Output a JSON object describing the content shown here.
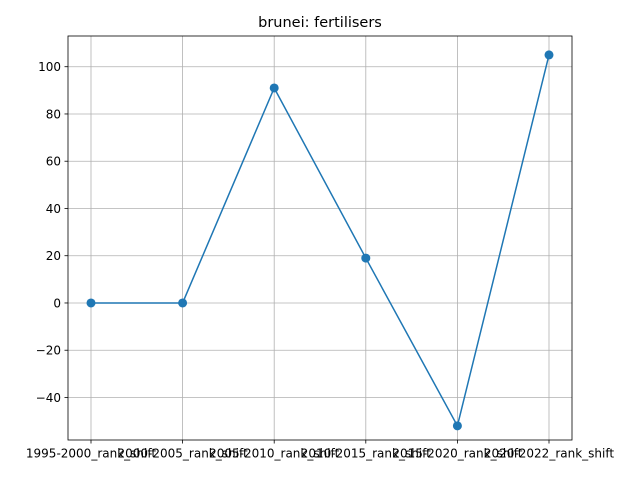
{
  "chart_data": {
    "type": "line",
    "title": "brunei: fertilisers",
    "xlabel": "",
    "ylabel": "",
    "categories": [
      "1995-2000_rank_shift",
      "2000-2005_rank_shift",
      "2005-2010_rank_shift",
      "2010-2015_rank_shift",
      "2015-2020_rank_shift",
      "2020-2022_rank_shift"
    ],
    "series": [
      {
        "values": [
          0,
          0,
          91,
          19,
          -52,
          105
        ],
        "color": "#1f77b4",
        "marker": "circle"
      }
    ],
    "ylim": [
      -58,
      113
    ],
    "yticks": [
      -40,
      -20,
      0,
      20,
      40,
      60,
      80,
      100
    ],
    "grid": true,
    "legend": "none"
  }
}
